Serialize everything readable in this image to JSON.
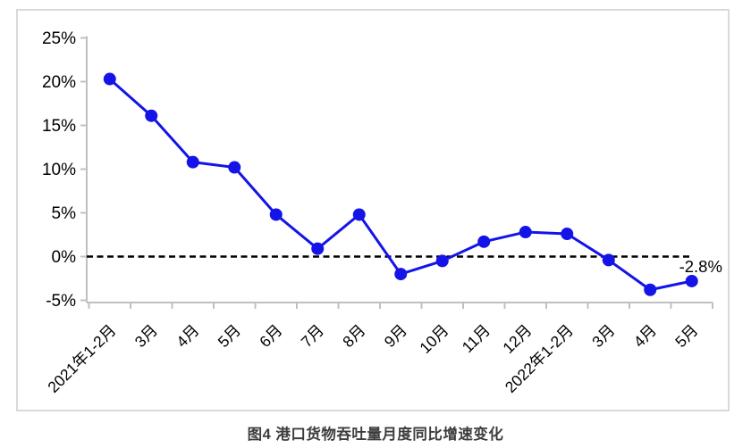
{
  "title": {
    "text": "图4  港口货物吞吐量月度同比增速变化"
  },
  "chart_data": {
    "type": "line",
    "categories": [
      "2021年1-2月",
      "3月",
      "4月",
      "5月",
      "6月",
      "7月",
      "8月",
      "9月",
      "10月",
      "11月",
      "12月",
      "2022年1-2月",
      "3月",
      "4月",
      "5月"
    ],
    "values": [
      20.3,
      16.1,
      10.8,
      10.2,
      4.8,
      0.9,
      4.8,
      -2.0,
      -0.5,
      1.7,
      2.8,
      2.6,
      -0.4,
      -3.8,
      -2.8
    ],
    "y_ticks": [
      -5,
      0,
      5,
      10,
      15,
      20,
      25
    ],
    "y_tick_labels": [
      "-5%",
      "0%",
      "5%",
      "10%",
      "15%",
      "20%",
      "25%"
    ],
    "ylim": [
      -5,
      25
    ],
    "xlabel": "",
    "ylabel": "",
    "grid": false,
    "legend": false,
    "zero_line_style": "dashed",
    "last_point_label": "-2.8%",
    "colors": {
      "series": "#1414E8",
      "axis": "#C0C0C0",
      "frame_border": "#D9D9D9",
      "zero_line": "#000000",
      "tick_text": "#000000",
      "data_label_text": "#000000"
    }
  }
}
